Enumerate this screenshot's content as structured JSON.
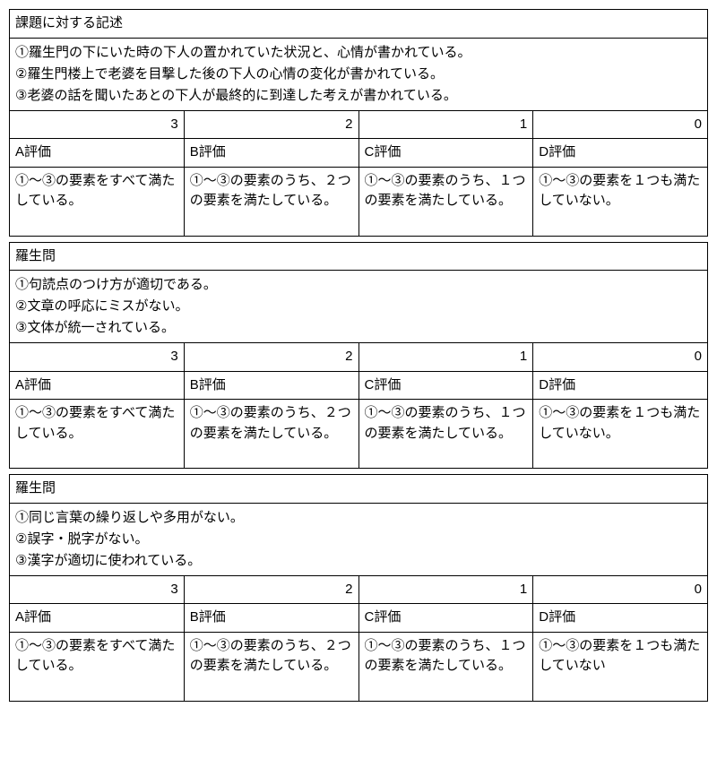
{
  "sections": [
    {
      "title": "課題に対する記述",
      "criteria": "①羅生門の下にいた時の下人の置かれていた状況と、心情が書かれている。\n②羅生門楼上で老婆を目撃した後の下人の心情の変化が書かれている。\n③老婆の話を聞いたあとの下人が最終的に到達した考えが書かれている。",
      "scores": [
        "3",
        "2",
        "1",
        "0"
      ],
      "grades": [
        "A評価",
        "B評価",
        "C評価",
        "D評価"
      ],
      "descriptions": [
        "①〜③の要素をすべて満たしている。",
        "①〜③の要素のうち、２つの要素を満たしている。",
        "①〜③の要素のうち、１つの要素を満たしている。",
        "①〜③の要素を１つも満たしていない。"
      ]
    },
    {
      "title": "羅生問",
      "criteria": "①句読点のつけ方が適切である。\n②文章の呼応にミスがない。\n③文体が統一されている。",
      "scores": [
        "3",
        "2",
        "1",
        "0"
      ],
      "grades": [
        "A評価",
        "B評価",
        "C評価",
        "D評価"
      ],
      "descriptions": [
        "①〜③の要素をすべて満たしている。",
        "①〜③の要素のうち、２つの要素を満たしている。",
        "①〜③の要素のうち、１つの要素を満たしている。",
        "①〜③の要素を１つも満たしていない。"
      ]
    },
    {
      "title": "羅生問",
      "criteria": "①同じ言葉の繰り返しや多用がない。\n②誤字・脱字がない。\n③漢字が適切に使われている。",
      "scores": [
        "3",
        "2",
        "1",
        "0"
      ],
      "grades": [
        "A評価",
        "B評価",
        "C評価",
        "D評価"
      ],
      "descriptions": [
        "①〜③の要素をすべて満たしている。",
        "①〜③の要素のうち、２つの要素を満たしている。",
        "①〜③の要素のうち、１つの要素を満たしている。",
        "①〜③の要素を１つも満たしていない"
      ]
    }
  ],
  "style": {
    "border_color": "#000000",
    "background_color": "#ffffff",
    "text_color": "#000000",
    "font_size_base": 15,
    "col_count": 4
  }
}
